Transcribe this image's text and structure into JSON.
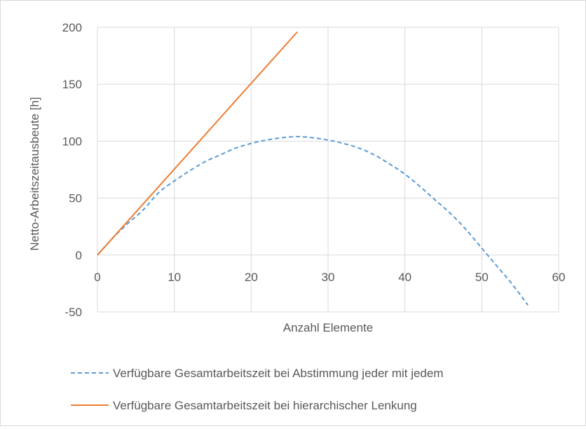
{
  "chart_data": {
    "type": "line",
    "title": "",
    "xlabel": "Anzahl Elemente",
    "ylabel": "Netto-Arbeitszeitausbeute [h]",
    "xlim": [
      0,
      60
    ],
    "ylim": [
      -50,
      200
    ],
    "xticks": [
      "0",
      "10",
      "20",
      "30",
      "40",
      "50",
      "60"
    ],
    "yticks": [
      "-50",
      "0",
      "50",
      "100",
      "150",
      "200"
    ],
    "grid": true,
    "legend_position": "bottom",
    "series": [
      {
        "name": "Verfügbare Gesamtarbeitszeit bei Abstimmung jeder mit jedem",
        "color": "#5B9BD5",
        "style": "dashed",
        "x": [
          0,
          2,
          4,
          6,
          8,
          10,
          12,
          14,
          16,
          18,
          20,
          22,
          24,
          26,
          28,
          30,
          32,
          34,
          36,
          38,
          40,
          42,
          44,
          46,
          48,
          50,
          52,
          54,
          56
        ],
        "y": [
          0,
          15,
          28,
          40,
          55,
          65,
          74,
          82,
          88,
          94,
          98,
          101,
          103,
          104,
          103,
          101,
          98,
          94,
          88,
          80,
          71,
          60,
          48,
          36,
          22,
          6,
          -10,
          -26,
          -44
        ]
      },
      {
        "name": "Verfügbare Gesamtarbeitszeit bei hierarchischer Lenkung",
        "color": "#ED7D31",
        "style": "solid",
        "x": [
          0,
          26
        ],
        "y": [
          0,
          196
        ]
      }
    ]
  }
}
